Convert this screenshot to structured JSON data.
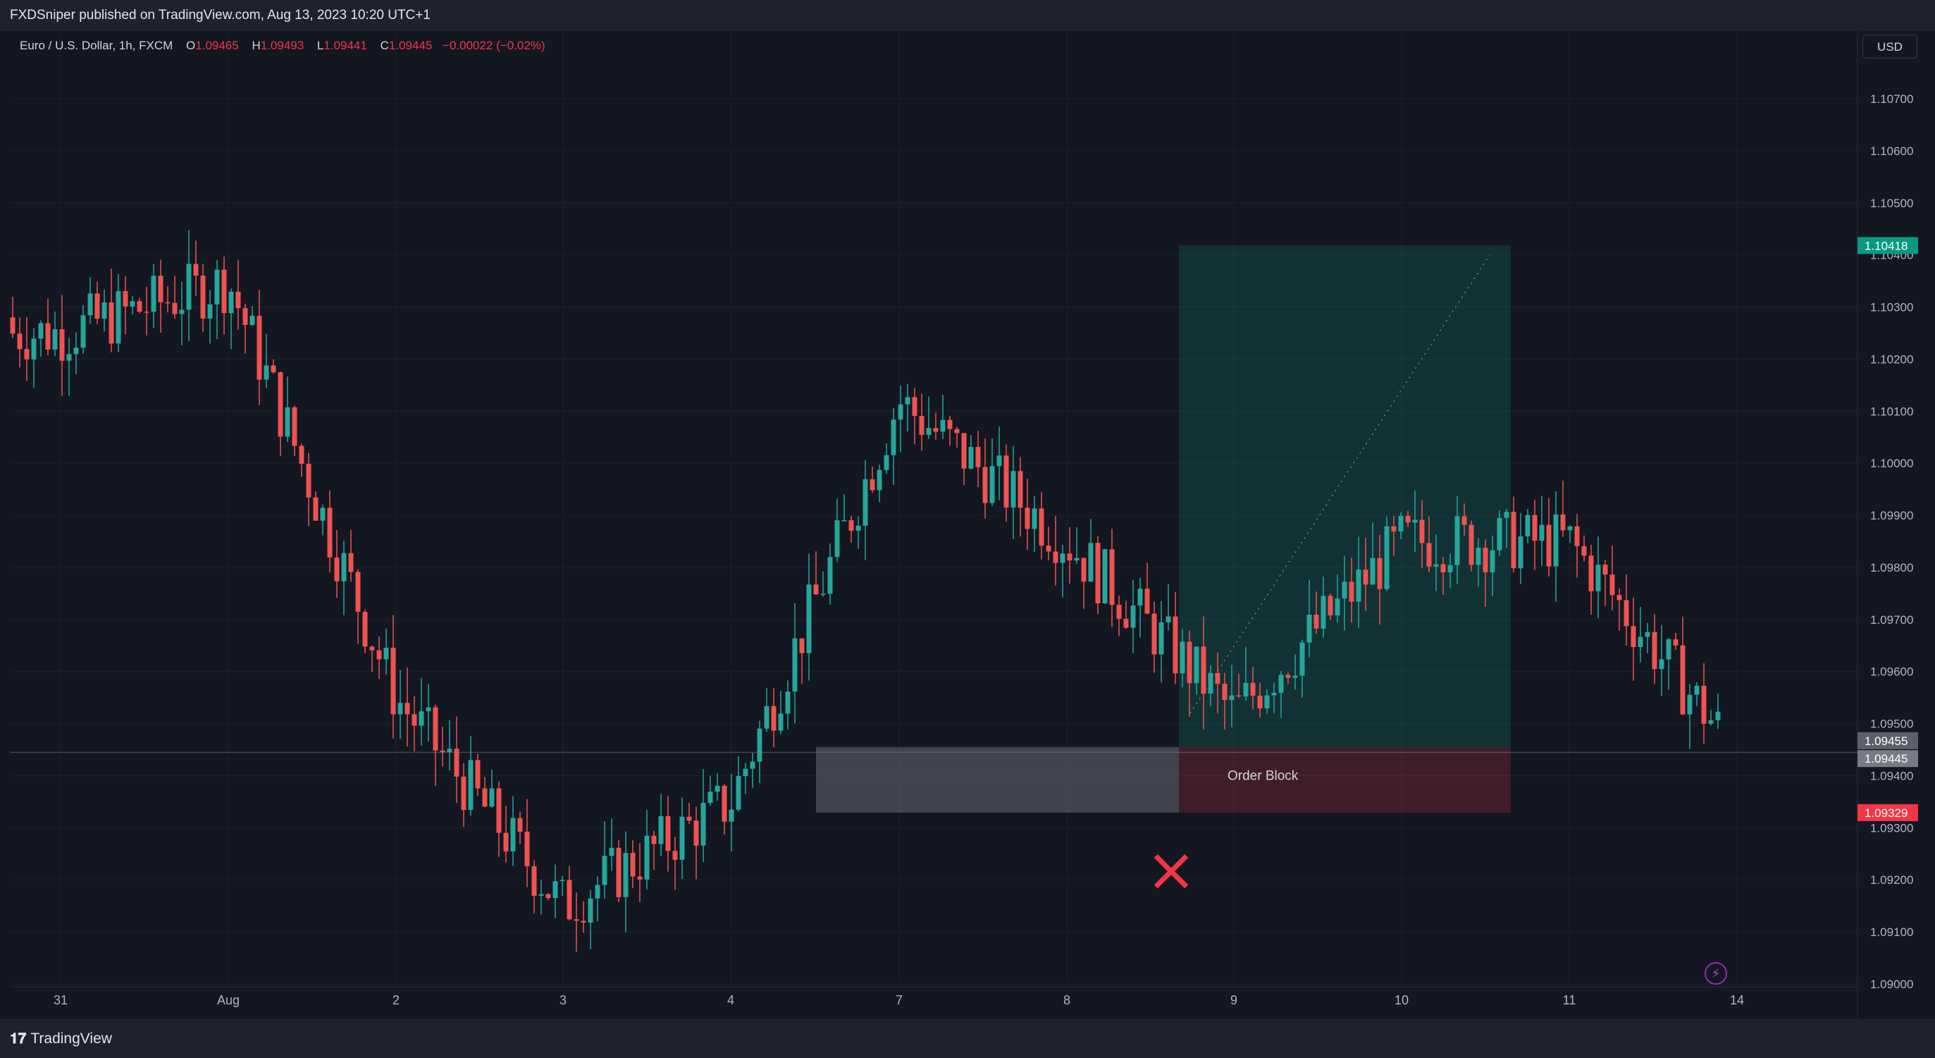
{
  "header": {
    "published": "FXDSniper published on TradingView.com, Aug 13, 2023 10:20 UTC+1"
  },
  "legend": {
    "symbol": "Euro / U.S. Dollar, 1h, FXCM",
    "open_label": "O",
    "open": "1.09465",
    "high_label": "H",
    "high": "1.09493",
    "low_label": "L",
    "low": "1.09441",
    "close_label": "C",
    "close": "1.09445",
    "change": "−0.00022 (−0.02%)"
  },
  "currency_button": "USD",
  "footer": {
    "brand": "TradingView"
  },
  "colors": {
    "bg": "#131722",
    "up": "#26a69a",
    "down": "#ef5350",
    "target": "#089981",
    "stop": "#f23645",
    "grid": "#1e222d"
  },
  "annotations": {
    "order_block_label": "Order Block",
    "invalid_mark": "×"
  },
  "chart_data": {
    "type": "candlestick",
    "ylim": [
      1.0895,
      1.1075
    ],
    "y_ticks": [
      "1.09000",
      "1.09100",
      "1.09200",
      "1.09300",
      "1.09400",
      "1.09500",
      "1.09600",
      "1.09700",
      "1.09800",
      "1.09900",
      "1.10000",
      "1.10100",
      "1.10200",
      "1.10300",
      "1.10400",
      "1.10500",
      "1.10600",
      "1.10700"
    ],
    "x_ticks": [
      "31",
      "Aug",
      "2",
      "3",
      "4",
      "7",
      "8",
      "9",
      "10",
      "11",
      "14"
    ],
    "price_labels": [
      {
        "value": "1.10418",
        "role": "target"
      },
      {
        "value": "1.09455",
        "role": "entry"
      },
      {
        "value": "1.09445",
        "role": "last"
      },
      {
        "value": "1.09329",
        "role": "stop"
      }
    ],
    "current_price": 1.09445,
    "order_block": {
      "top": 1.09455,
      "bottom": 1.09329
    },
    "long_position": {
      "entry": 1.09455,
      "target": 1.10418,
      "stop": 1.09329
    },
    "key_closes": [
      {
        "day": "31",
        "close": 1.1025
      },
      {
        "day": "Aug",
        "close": 1.1035
      },
      {
        "day": "2",
        "close": 1.0955
      },
      {
        "day": "3",
        "close": 1.0915
      },
      {
        "day": "4",
        "close": 1.0935
      },
      {
        "day": "7",
        "close": 1.1012
      },
      {
        "day": "8",
        "close": 1.0985
      },
      {
        "day": "9",
        "close": 1.0952
      },
      {
        "day": "10",
        "close": 1.0985
      },
      {
        "day": "11",
        "close": 1.0985
      },
      {
        "day": "14",
        "close": 1.09445
      }
    ]
  }
}
